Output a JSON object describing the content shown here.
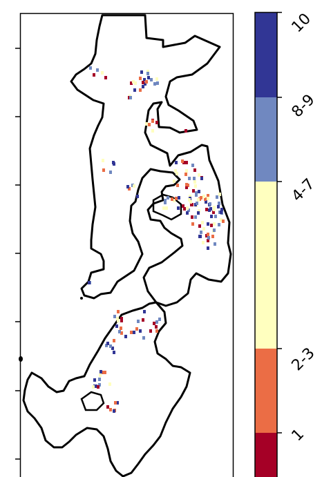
{
  "colorbar": {
    "bins": [
      {
        "label": "10",
        "color": "#313695",
        "range": [
          10,
          10
        ]
      },
      {
        "label": "8-9",
        "color": "#7088c0",
        "range": [
          8,
          9
        ]
      },
      {
        "label": "4-7",
        "color": "#ffffbf",
        "range": [
          4,
          7
        ]
      },
      {
        "label": "2-3",
        "color": "#eb6d45",
        "range": [
          2,
          3
        ]
      },
      {
        "label": "1",
        "color": "#a50026",
        "range": [
          1,
          1
        ]
      }
    ]
  },
  "map": {
    "outline_color": "#000000",
    "background": "#ffffff"
  }
}
